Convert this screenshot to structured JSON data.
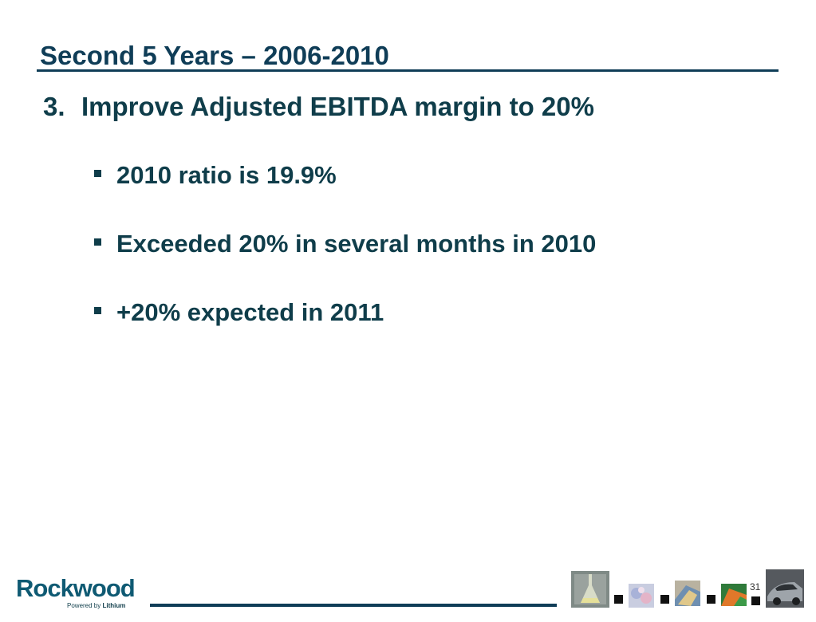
{
  "slide": {
    "title": "Second 5 Years – 2006-2010",
    "point_number": "3.",
    "point_text": "Improve Adjusted EBITDA margin to 20%",
    "bullets": [
      "2010 ratio is 19.9%",
      "Exceeded 20% in several months in 2010",
      "+20% expected in 2011"
    ],
    "page_number": "31"
  },
  "footer": {
    "logo_text": "Rockwood",
    "tagline_prefix": "Powered by",
    "tagline_bold": "Lithium",
    "thumbnail_icons": [
      "flask-photo",
      "flowers-photo",
      "fabric-photo",
      "paint-photo",
      "car-photo"
    ]
  },
  "colors": {
    "title": "#0f3d57",
    "body_text": "#0f3d4a",
    "logo": "#0f5a73"
  }
}
